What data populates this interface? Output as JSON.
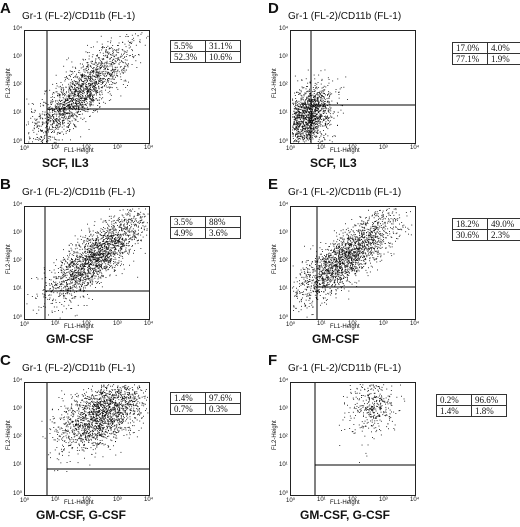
{
  "figure": {
    "panels": [
      {
        "letter": "A",
        "title": "Gr-1  (FL-2)/CD11b  (FL-1)",
        "ylabel": "FL2-Height",
        "xlabel": "FL1-Height",
        "condition": "SCF, IL3",
        "quadrants": [
          [
            "5.5%",
            "31.1%"
          ],
          [
            "52.3%",
            "10.6%"
          ]
        ]
      },
      {
        "letter": "B",
        "title": "Gr-1  (FL-2)/CD11b  (FL-1)",
        "ylabel": "FL2-Height",
        "xlabel": "FL1-Height",
        "condition": "GM-CSF",
        "quadrants": [
          [
            "3.5%",
            "88%"
          ],
          [
            "4.9%",
            "3.6%"
          ]
        ]
      },
      {
        "letter": "C",
        "title": "Gr-1  (FL-2)/CD11b  (FL-1)",
        "ylabel": "FL2-Height",
        "xlabel": "FL1-Height",
        "condition": "GM-CSF, G-CSF",
        "quadrants": [
          [
            "1.4%",
            "97.6%"
          ],
          [
            "0.7%",
            "0.3%"
          ]
        ]
      },
      {
        "letter": "D",
        "title": "Gr-1  (FL-2)/CD11b  (FL-1)",
        "ylabel": "FL2-Height",
        "xlabel": "FL1-Height",
        "condition": "SCF, IL3",
        "quadrants": [
          [
            "17.0%",
            "4.0%"
          ],
          [
            "77.1%",
            "1.9%"
          ]
        ]
      },
      {
        "letter": "E",
        "title": "Gr-1  (FL-2)/CD11b  (FL-1)",
        "ylabel": "FL2-Height",
        "xlabel": "FL1-Height",
        "condition": "GM-CSF",
        "quadrants": [
          [
            "18.2%",
            "49.0%"
          ],
          [
            "30.6%",
            "2.3%"
          ]
        ]
      },
      {
        "letter": "F",
        "title": "Gr-1  (FL-2)/CD11b  (FL-1)",
        "ylabel": "FL2-Height",
        "xlabel": "FL1-Height",
        "condition": "GM-CSF, G-CSF",
        "quadrants": [
          [
            "0.2%",
            "96.6%"
          ],
          [
            "1.4%",
            "1.8%"
          ]
        ]
      }
    ],
    "x_ticks": [
      "10⁰",
      "10¹",
      "10²",
      "10³",
      "10⁴"
    ],
    "y_ticks": [
      "10⁰",
      "10¹",
      "10²",
      "10³",
      "10⁴"
    ]
  }
}
